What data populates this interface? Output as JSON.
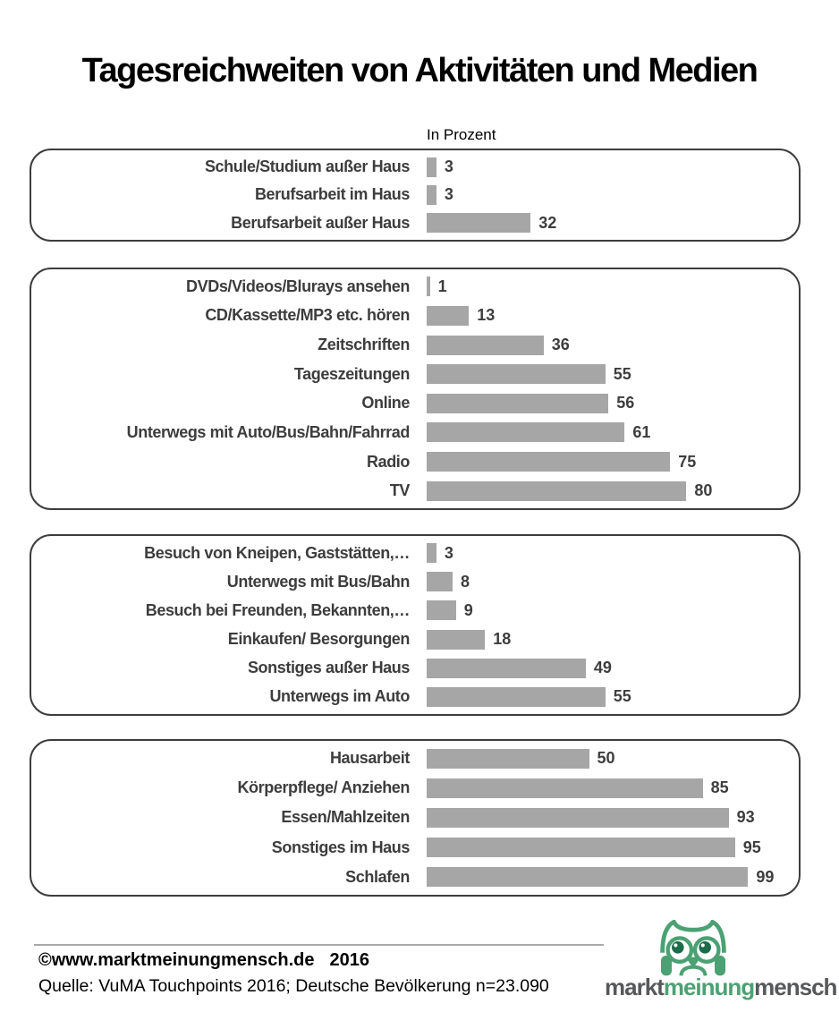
{
  "title": "Tagesreichweiten von Aktivitäten und Medien",
  "unit_label": "In Prozent",
  "colors": {
    "bar": "#a6a6a6",
    "label_text": "#3d3d3d",
    "box_border": "#3d3d3d",
    "logo_green": "#4ba173",
    "logo_gray": "#57585a"
  },
  "chart_data": {
    "type": "bar",
    "orientation": "horizontal",
    "title": "Tagesreichweiten von Aktivitäten und Medien",
    "value_unit": "In Prozent",
    "xlim": [
      0,
      100
    ],
    "grid": false,
    "legend": false,
    "groups": [
      {
        "items": [
          {
            "label": "Schule/Studium außer Haus",
            "value": 3
          },
          {
            "label": "Berufsarbeit im Haus",
            "value": 3
          },
          {
            "label": "Berufsarbeit außer Haus",
            "value": 32
          }
        ]
      },
      {
        "items": [
          {
            "label": "DVDs/Videos/Blurays ansehen",
            "value": 1
          },
          {
            "label": "CD/Kassette/MP3 etc. hören",
            "value": 13
          },
          {
            "label": "Zeitschriften",
            "value": 36
          },
          {
            "label": "Tageszeitungen",
            "value": 55
          },
          {
            "label": "Online",
            "value": 56
          },
          {
            "label": "Unterwegs mit Auto/Bus/Bahn/Fahrrad",
            "value": 61
          },
          {
            "label": "Radio",
            "value": 75
          },
          {
            "label": "TV",
            "value": 80
          }
        ]
      },
      {
        "items": [
          {
            "label": "Besuch von Kneipen, Gaststätten,…",
            "value": 3
          },
          {
            "label": "Unterwegs mit Bus/Bahn",
            "value": 8
          },
          {
            "label": "Besuch bei Freunden, Bekannten,…",
            "value": 9
          },
          {
            "label": "Einkaufen/ Besorgungen",
            "value": 18
          },
          {
            "label": "Sonstiges außer Haus",
            "value": 49
          },
          {
            "label": "Unterwegs im Auto",
            "value": 55
          }
        ]
      },
      {
        "items": [
          {
            "label": "Hausarbeit",
            "value": 50
          },
          {
            "label": "Körperpflege/ Anziehen",
            "value": 85
          },
          {
            "label": "Essen/Mahlzeiten",
            "value": 93
          },
          {
            "label": "Sonstiges im Haus",
            "value": 95
          },
          {
            "label": "Schlafen",
            "value": 99
          }
        ]
      }
    ]
  },
  "footer": {
    "copyright": "©www.marktmeinungmensch.de",
    "year": "2016",
    "source": "Quelle: VuMA Touchpoints 2016; Deutsche Bevölkerung n=23.090"
  },
  "logo": {
    "part1": "markt",
    "part2": "meinung",
    "part3": "mensch"
  }
}
